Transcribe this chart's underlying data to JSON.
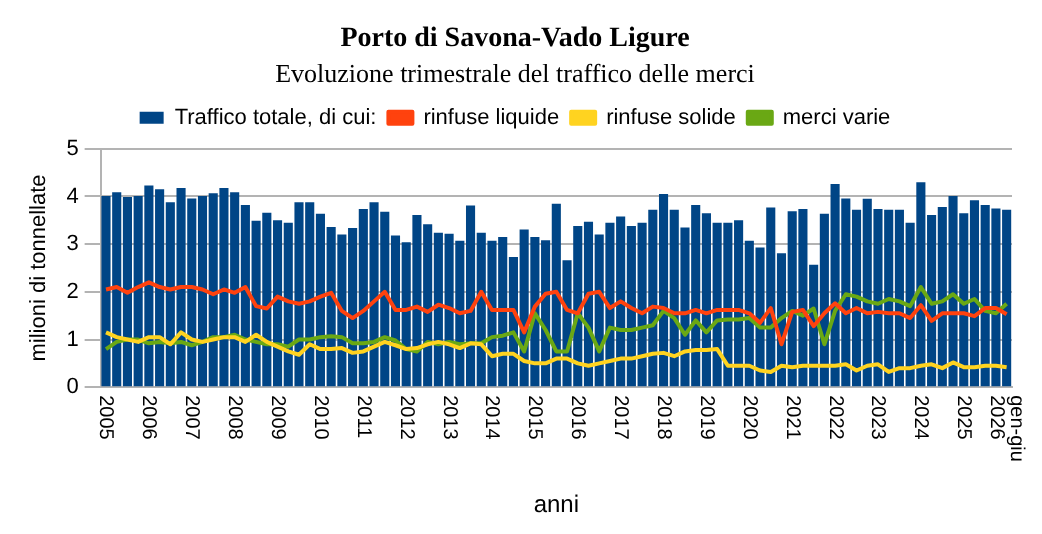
{
  "chart_data": {
    "type": "bar",
    "title": "Porto di Savona-Vado Ligure",
    "subtitle": "Evoluzione trimestrale del traffico delle merci",
    "xlabel": "anni",
    "ylabel": "milioni di tonnellate",
    "categories": [
      "2005",
      null,
      null,
      null,
      "2006",
      null,
      null,
      null,
      "2007",
      null,
      null,
      null,
      "2008",
      null,
      null,
      null,
      "2009",
      null,
      null,
      null,
      "2010",
      null,
      null,
      null,
      "2011",
      null,
      null,
      null,
      "2012",
      null,
      null,
      null,
      "2013",
      null,
      null,
      null,
      "2014",
      null,
      null,
      null,
      "2015",
      null,
      null,
      null,
      "2016",
      null,
      null,
      null,
      "2017",
      null,
      null,
      null,
      "2018",
      null,
      null,
      null,
      "2019",
      null,
      null,
      null,
      "2020",
      null,
      null,
      null,
      "2021",
      null,
      null,
      null,
      "2022",
      null,
      null,
      null,
      "2023",
      null,
      null,
      null,
      "2024",
      null,
      null,
      null,
      "2025",
      null,
      null,
      null,
      "gen-giu\n2026"
    ],
    "series": [
      {
        "name": "Traffico totale, di cui:",
        "color": "#004586",
        "values": [
          4.01,
          4.09,
          3.99,
          4.01,
          4.23,
          4.15,
          3.88,
          4.18,
          3.96,
          4.01,
          4.07,
          4.18,
          4.09,
          3.82,
          3.49,
          3.66,
          3.5,
          3.45,
          3.88,
          3.88,
          3.64,
          3.36,
          3.2,
          3.34,
          3.74,
          3.88,
          3.68,
          3.18,
          3.04,
          3.61,
          3.42,
          3.24,
          3.22,
          3.07,
          3.81,
          3.24,
          3.07,
          3.15,
          2.73,
          3.31,
          3.15,
          3.08,
          3.85,
          2.66,
          3.38,
          3.47,
          3.2,
          3.45,
          3.58,
          3.38,
          3.45,
          3.72,
          4.05,
          3.72,
          3.35,
          3.82,
          3.65,
          3.45,
          3.45,
          3.5,
          3.07,
          2.93,
          3.77,
          2.81,
          3.69,
          3.74,
          2.57,
          3.64,
          4.26,
          3.96,
          3.72,
          3.95,
          3.74,
          3.72,
          3.72,
          3.45,
          4.3,
          3.61,
          3.78,
          4.01,
          3.65,
          3.92,
          3.82,
          3.75,
          3.72
        ]
      },
      {
        "name": "rinfuse liquide",
        "type": "line",
        "color": "#ff420e",
        "values": [
          2.05,
          2.1,
          1.98,
          2.1,
          2.2,
          2.1,
          2.05,
          2.1,
          2.1,
          2.05,
          1.95,
          2.05,
          1.98,
          2.1,
          1.7,
          1.65,
          1.9,
          1.8,
          1.75,
          1.8,
          1.9,
          1.98,
          1.6,
          1.45,
          1.6,
          1.8,
          2.0,
          1.62,
          1.62,
          1.69,
          1.58,
          1.73,
          1.66,
          1.55,
          1.6,
          2.0,
          1.62,
          1.62,
          1.62,
          1.15,
          1.69,
          1.96,
          2.0,
          1.62,
          1.55,
          1.96,
          2.0,
          1.66,
          1.8,
          1.66,
          1.55,
          1.69,
          1.66,
          1.55,
          1.55,
          1.62,
          1.55,
          1.62,
          1.62,
          1.62,
          1.55,
          1.35,
          1.66,
          0.9,
          1.58,
          1.62,
          1.28,
          1.55,
          1.76,
          1.55,
          1.66,
          1.55,
          1.58,
          1.55,
          1.55,
          1.45,
          1.72,
          1.39,
          1.55,
          1.55,
          1.55,
          1.49,
          1.66,
          1.66,
          1.53
        ]
      },
      {
        "name": "rinfuse solide",
        "type": "line",
        "color": "#ffd320",
        "values": [
          1.15,
          1.05,
          1.0,
          0.95,
          1.05,
          1.05,
          0.9,
          1.15,
          1.0,
          0.95,
          1.0,
          1.05,
          1.05,
          0.95,
          1.1,
          0.95,
          0.85,
          0.75,
          0.68,
          0.9,
          0.8,
          0.8,
          0.82,
          0.72,
          0.75,
          0.85,
          0.95,
          0.88,
          0.8,
          0.82,
          0.9,
          0.95,
          0.9,
          0.82,
          0.92,
          0.9,
          0.65,
          0.7,
          0.7,
          0.55,
          0.5,
          0.5,
          0.6,
          0.6,
          0.5,
          0.45,
          0.5,
          0.55,
          0.6,
          0.6,
          0.65,
          0.7,
          0.72,
          0.65,
          0.75,
          0.78,
          0.78,
          0.8,
          0.45,
          0.45,
          0.45,
          0.35,
          0.32,
          0.45,
          0.42,
          0.45,
          0.45,
          0.45,
          0.45,
          0.48,
          0.35,
          0.45,
          0.48,
          0.32,
          0.4,
          0.4,
          0.45,
          0.48,
          0.4,
          0.52,
          0.42,
          0.42,
          0.45,
          0.45,
          0.42
        ]
      },
      {
        "name": "merci varie",
        "type": "line",
        "color": "#6aa814",
        "values": [
          0.8,
          0.95,
          1.0,
          1.0,
          0.92,
          0.95,
          0.92,
          0.95,
          0.88,
          0.95,
          1.05,
          1.05,
          1.1,
          1.0,
          0.95,
          0.9,
          0.9,
          0.85,
          1.0,
          1.0,
          1.05,
          1.07,
          1.05,
          0.92,
          0.92,
          0.95,
          1.05,
          0.98,
          0.8,
          0.75,
          0.95,
          0.9,
          0.95,
          0.9,
          0.92,
          0.92,
          1.05,
          1.08,
          1.15,
          0.75,
          1.55,
          1.2,
          0.75,
          0.75,
          1.55,
          1.25,
          0.75,
          1.25,
          1.2,
          1.2,
          1.25,
          1.3,
          1.6,
          1.45,
          1.1,
          1.4,
          1.15,
          1.4,
          1.42,
          1.42,
          1.45,
          1.25,
          1.25,
          1.45,
          1.6,
          1.5,
          1.65,
          0.9,
          1.6,
          1.95,
          1.9,
          1.8,
          1.75,
          1.85,
          1.8,
          1.7,
          2.1,
          1.75,
          1.8,
          1.95,
          1.75,
          1.85,
          1.6,
          1.55,
          1.75
        ]
      }
    ],
    "ylim": [
      0,
      5
    ],
    "yticks": [
      0,
      1,
      2,
      3,
      4,
      5
    ],
    "grid": "y",
    "legend": "top",
    "marker": "none",
    "line_style": "solid"
  }
}
